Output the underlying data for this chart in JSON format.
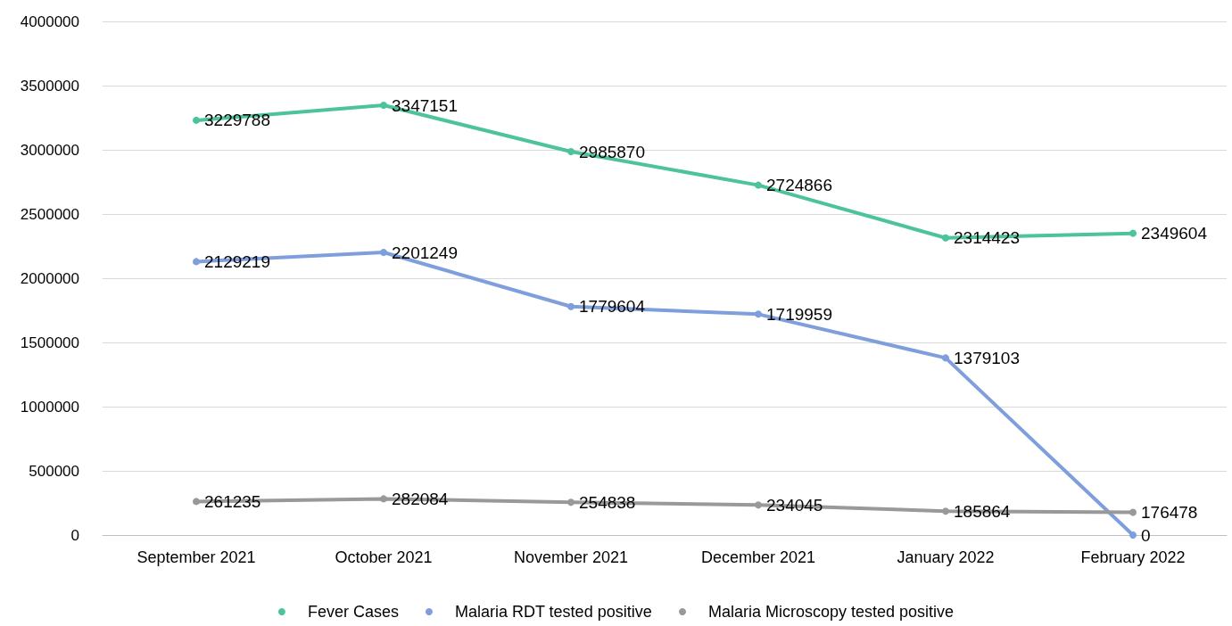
{
  "chart_data": {
    "type": "line",
    "categories": [
      "September 2021",
      "October 2021",
      "November 2021",
      "December 2021",
      "January 2022",
      "February 2022"
    ],
    "series": [
      {
        "name": "Fever Cases",
        "color": "#4cc39a",
        "values": [
          3229788,
          3347151,
          2985870,
          2724866,
          2314423,
          2349604
        ]
      },
      {
        "name": "Malaria RDT tested positive",
        "color": "#7f9fdc",
        "values": [
          2129219,
          2201249,
          1779604,
          1719959,
          1379103,
          0
        ]
      },
      {
        "name": "Malaria Microscopy tested positive",
        "color": "#999999",
        "values": [
          261235,
          282084,
          254838,
          234045,
          185864,
          176478
        ]
      }
    ],
    "ylim": [
      0,
      4000000
    ],
    "yticks": [
      0,
      500000,
      1000000,
      1500000,
      2000000,
      2500000,
      3000000,
      3500000,
      4000000
    ],
    "grid": "y",
    "legend": "bottom",
    "data_labels": true,
    "marker": "circle",
    "line_style": "solid"
  }
}
